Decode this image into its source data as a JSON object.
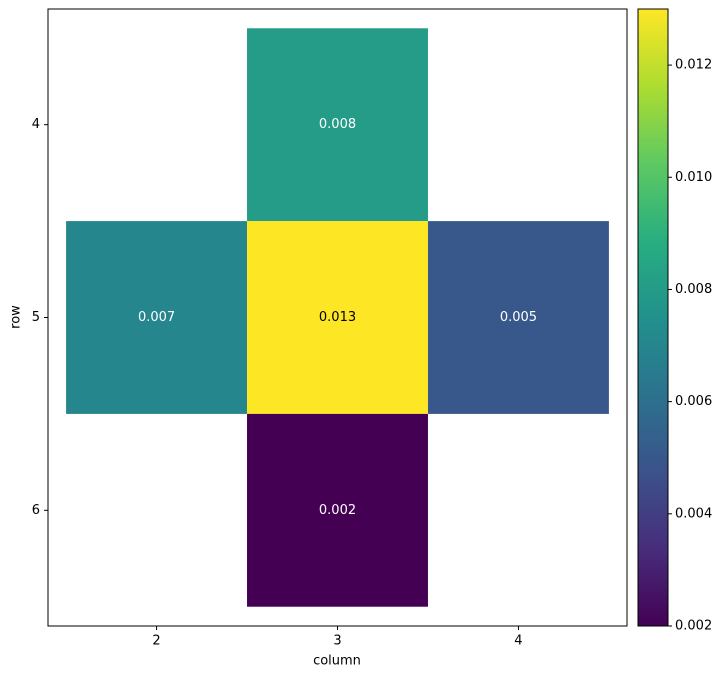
{
  "chart_data": {
    "type": "heatmap",
    "colormap": "viridis",
    "x_label": "column",
    "y_label": "row",
    "x": [
      2,
      3,
      4
    ],
    "y": [
      4,
      5,
      6
    ],
    "values": [
      [
        null,
        0.008,
        null
      ],
      [
        0.007,
        0.013,
        0.005
      ],
      [
        null,
        0.002,
        null
      ]
    ],
    "xlim": [
      1.4,
      4.6
    ],
    "ylim": [
      6.6,
      3.4
    ],
    "xticks": [
      2,
      3,
      4
    ],
    "yticks": [
      4,
      5,
      6
    ],
    "clim": [
      0.002,
      0.013
    ],
    "cticks": [
      0.002,
      0.004,
      0.006,
      0.008,
      {
        "value": 0.01,
        "label": "0.010"
      },
      0.012
    ]
  }
}
